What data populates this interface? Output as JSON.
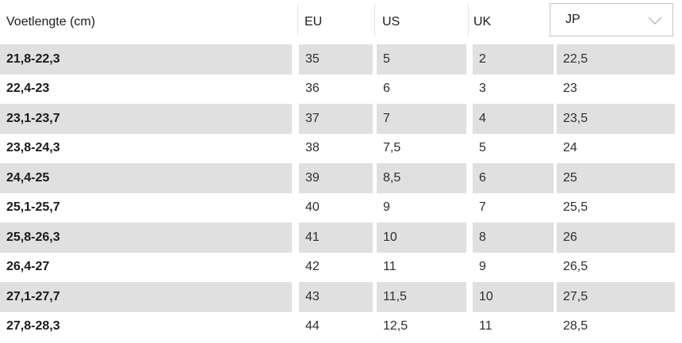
{
  "table": {
    "headers": {
      "foot_length": "Voetlengte (cm)",
      "eu": "EU",
      "us": "US",
      "uk": "UK"
    },
    "region_select": {
      "value": "JP",
      "icon": "chevron-down-icon"
    },
    "rows": [
      {
        "foot_length": "21,8-22,3",
        "eu": "35",
        "us": "5",
        "uk": "2",
        "jp": "22,5"
      },
      {
        "foot_length": "22,4-23",
        "eu": "36",
        "us": "6",
        "uk": "3",
        "jp": "23"
      },
      {
        "foot_length": "23,1-23,7",
        "eu": "37",
        "us": "7",
        "uk": "4",
        "jp": "23,5"
      },
      {
        "foot_length": "23,8-24,3",
        "eu": "38",
        "us": "7,5",
        "uk": "5",
        "jp": "24"
      },
      {
        "foot_length": "24,4-25",
        "eu": "39",
        "us": "8,5",
        "uk": "6",
        "jp": "25"
      },
      {
        "foot_length": "25,1-25,7",
        "eu": "40",
        "us": "9",
        "uk": "7",
        "jp": "25,5"
      },
      {
        "foot_length": "25,8-26,3",
        "eu": "41",
        "us": "10",
        "uk": "8",
        "jp": "26"
      },
      {
        "foot_length": "26,4-27",
        "eu": "42",
        "us": "11",
        "uk": "9",
        "jp": "26,5"
      },
      {
        "foot_length": "27,1-27,7",
        "eu": "43",
        "us": "11,5",
        "uk": "10",
        "jp": "27,5"
      },
      {
        "foot_length": "27,8-28,3",
        "eu": "44",
        "us": "12,5",
        "uk": "11",
        "jp": "28,5"
      }
    ],
    "colors": {
      "row_shade": "#e0e0e0",
      "text": "#1a1a1a",
      "select_border": "#c6c6c6",
      "chevron": "#b9b9b9",
      "header_separator": "#e3e3e3"
    }
  }
}
